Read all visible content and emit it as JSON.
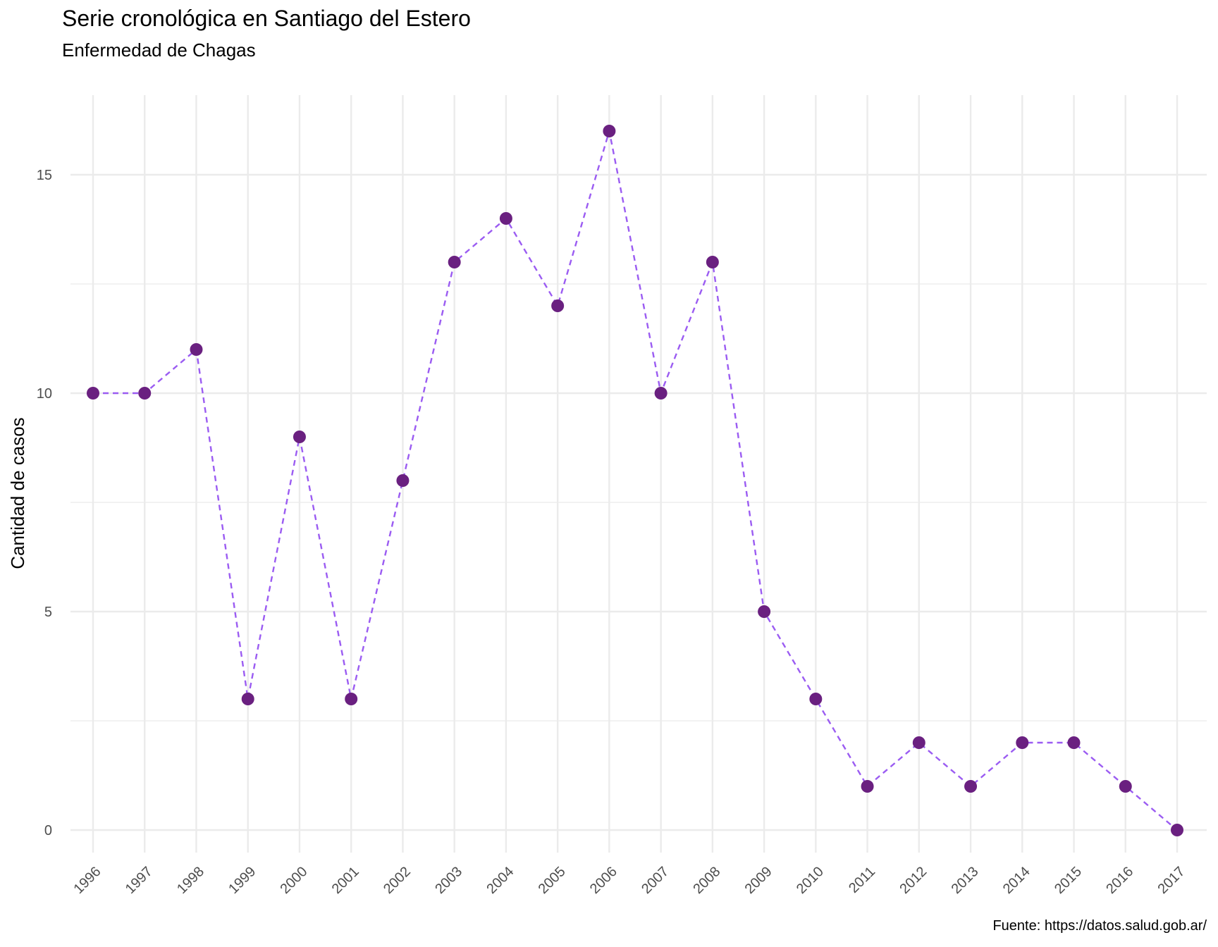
{
  "chart_data": {
    "type": "line",
    "title": "Serie cronológica en Santiago del Estero",
    "subtitle": "Enfermedad de Chagas",
    "xlabel": "",
    "ylabel": "Cantidad de casos",
    "caption": "Fuente: https://datos.salud.gob.ar/",
    "categories": [
      "1996",
      "1997",
      "1998",
      "1999",
      "2000",
      "2001",
      "2002",
      "2003",
      "2004",
      "2005",
      "2006",
      "2007",
      "2008",
      "2009",
      "2010",
      "2011",
      "2012",
      "2013",
      "2014",
      "2015",
      "2016",
      "2017"
    ],
    "values": [
      10,
      10,
      11,
      3,
      9,
      3,
      8,
      13,
      14,
      12,
      16,
      10,
      13,
      5,
      3,
      1,
      2,
      1,
      2,
      2,
      1,
      0
    ],
    "yticks": [
      "0",
      "5",
      "10",
      "15"
    ],
    "ylim": [
      0,
      16
    ],
    "grid": true,
    "legend": "none",
    "line_style": "dashed",
    "colors": {
      "line": "#9B5CF2",
      "point": "#6A2080",
      "grid": "#EBEBEB",
      "tick_text": "#4D4D4D"
    }
  }
}
